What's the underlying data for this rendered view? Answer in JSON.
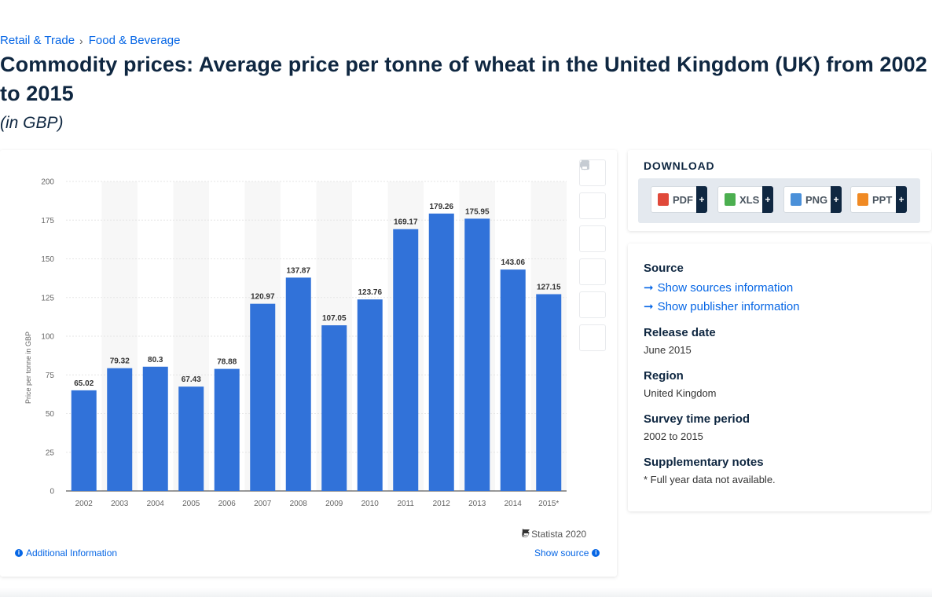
{
  "breadcrumb": {
    "items": [
      "Retail & Trade",
      "Food & Beverage"
    ],
    "separator": "›"
  },
  "page_title": "Commodity prices: Average price per tonne of wheat in the United Kingdom (UK) from 2002 to 2015",
  "page_subtitle": "(in GBP)",
  "chart_data": {
    "type": "bar",
    "title": "",
    "xlabel": "",
    "ylabel": "Price per tonne in GBP",
    "categories": [
      "2002",
      "2003",
      "2004",
      "2005",
      "2006",
      "2007",
      "2008",
      "2009",
      "2010",
      "2011",
      "2012",
      "2013",
      "2014",
      "2015*"
    ],
    "values": [
      65.02,
      79.32,
      80.3,
      67.43,
      78.88,
      120.97,
      137.87,
      107.05,
      123.76,
      169.17,
      179.26,
      175.95,
      143.06,
      127.15
    ],
    "value_labels": [
      "65.02",
      "79.32",
      "80.3",
      "67.43",
      "78.88",
      "120.97",
      "137.87",
      "107.05",
      "123.76",
      "169.17",
      "179.26",
      "175.95",
      "143.06",
      "127.15"
    ],
    "ylim": [
      0,
      200
    ],
    "yticks": [
      0,
      25,
      50,
      75,
      100,
      125,
      150,
      175,
      200
    ],
    "grid": true,
    "bar_color": "#3172d9",
    "alt_band_color": "#f7f7f7"
  },
  "chart_footer": {
    "copyright": "© Statista 2020",
    "additional_info": "Additional Information",
    "show_source": "Show source"
  },
  "tools": {
    "icons": [
      "star-icon",
      "bell-icon",
      "gear-icon",
      "share-icon",
      "quote-icon",
      "print-icon"
    ]
  },
  "download": {
    "title": "DOWNLOAD",
    "buttons": [
      {
        "label": "PDF",
        "color": "#e0493a"
      },
      {
        "label": "XLS",
        "color": "#4caf50"
      },
      {
        "label": "PNG",
        "color": "#4a90d9"
      },
      {
        "label": "PPT",
        "color": "#f08a24"
      }
    ],
    "plus": "+"
  },
  "meta": {
    "source_heading": "Source",
    "show_sources": "Show sources information",
    "show_publisher": "Show publisher information",
    "release_heading": "Release date",
    "release_value": "June 2015",
    "region_heading": "Region",
    "region_value": "United Kingdom",
    "survey_heading": "Survey time period",
    "survey_value": "2002 to 2015",
    "notes_heading": "Supplementary notes",
    "notes_value": "* Full year data not available."
  }
}
